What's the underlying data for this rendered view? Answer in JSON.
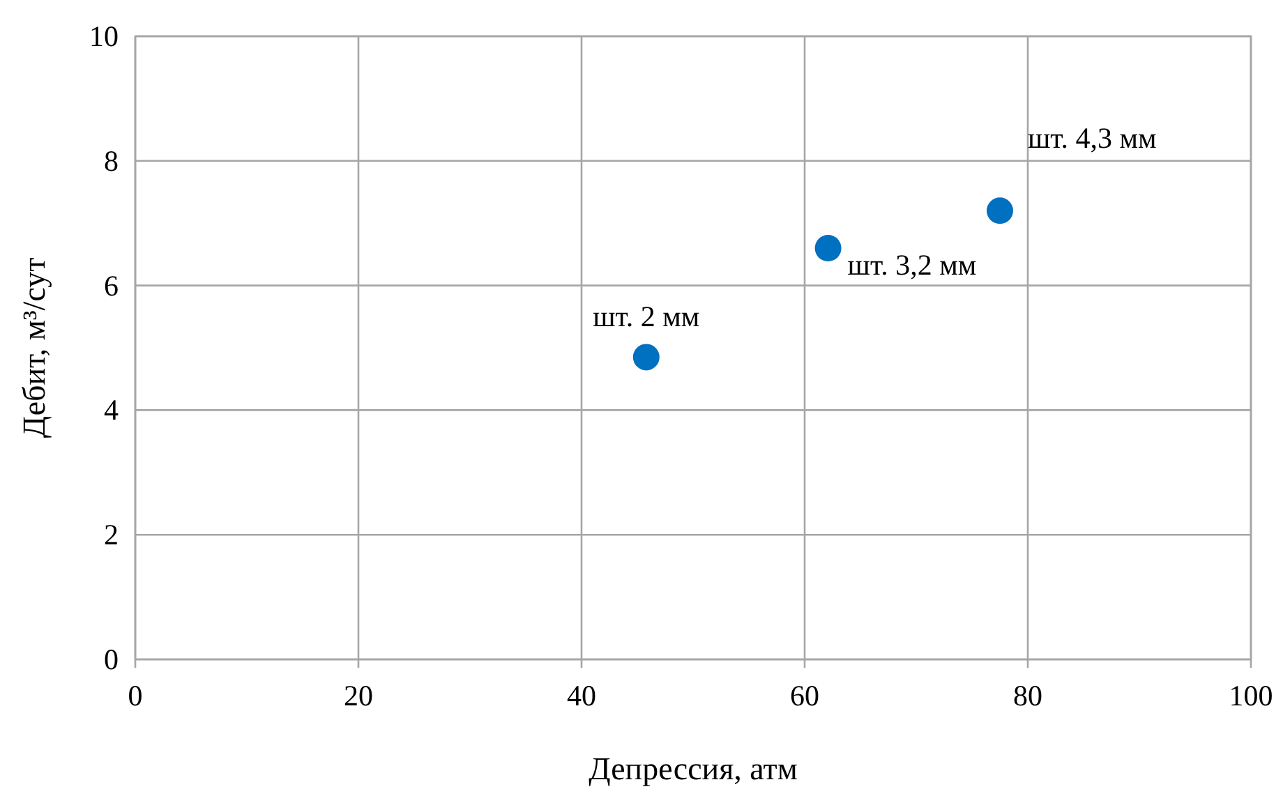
{
  "chart_data": {
    "type": "scatter",
    "xlabel": "Депрессия, атм",
    "ylabel": "Дебит, м³/сут",
    "x": [
      45.8,
      62.1,
      77.5
    ],
    "series": [
      {
        "color": "#0070c0",
        "values": [
          4.85,
          6.6,
          7.2
        ]
      }
    ],
    "xlim": [
      0,
      100
    ],
    "xticks": [
      0,
      20,
      40,
      60,
      80,
      100
    ],
    "ylim": [
      0,
      10
    ],
    "yticks": [
      0,
      2,
      4,
      6,
      8,
      10
    ],
    "grid": true,
    "marker": "circle",
    "annotations": [
      {
        "text": "шт. 2 мм",
        "x": 45.8,
        "y": 4.85
      },
      {
        "text": "шт. 3,2 мм",
        "x": 62.1,
        "y": 6.6
      },
      {
        "text": "шт. 4,3 мм",
        "x": 77.5,
        "y": 7.2
      }
    ]
  }
}
